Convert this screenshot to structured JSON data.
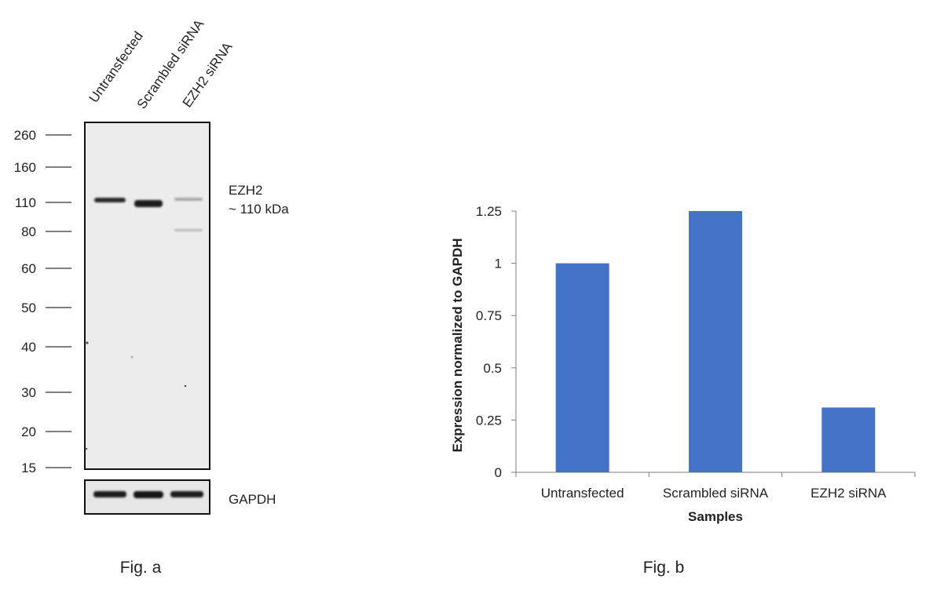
{
  "figure_a": {
    "caption": "Fig. a",
    "lane_labels": [
      "Untransfected",
      "Scrambled siRNA",
      "EZH2 siRNA"
    ],
    "markers": [
      "260",
      "160",
      "110",
      "80",
      "60",
      "50",
      "40",
      "30",
      "20",
      "15"
    ],
    "target_label": "EZH2",
    "target_size": "~ 110 kDa",
    "loading_control": "GAPDH"
  },
  "figure_b": {
    "caption": "Fig. b"
  },
  "chart_data": {
    "type": "bar",
    "categories": [
      "Untransfected",
      "Scrambled siRNA",
      "EZH2 siRNA"
    ],
    "values": [
      1.0,
      1.25,
      0.31
    ],
    "title": "",
    "xlabel": "Samples",
    "ylabel": "Expression normalized to GAPDH",
    "ylim": [
      0,
      1.25
    ],
    "yticks": [
      "0",
      "0.25",
      "0.5",
      "0.75",
      "1",
      "1.25"
    ],
    "tick_values": [
      0,
      0.25,
      0.5,
      0.75,
      1,
      1.25
    ],
    "bar_color": "#4472C4",
    "grid": false
  }
}
